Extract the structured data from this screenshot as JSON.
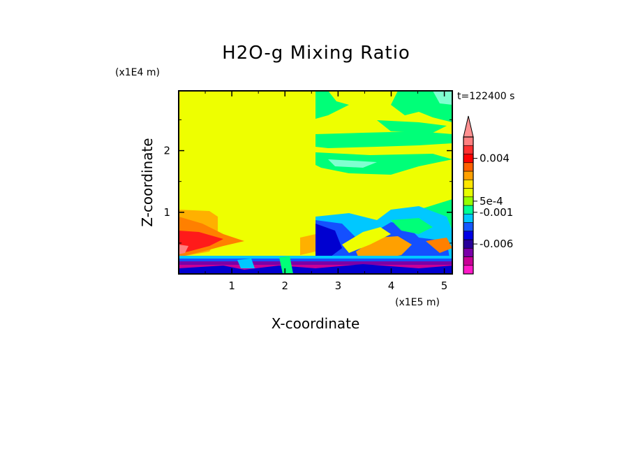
{
  "chart_data": {
    "type": "heatmap",
    "title": "H2O-g Mixing Ratio",
    "xlabel": "X-coordinate",
    "ylabel": "Z-coordinate",
    "x_scale_label": "(x1E5 m)",
    "y_scale_label": "(x1E4 m)",
    "time_label": "t=122400 s",
    "xlim": [
      0.0,
      5.15
    ],
    "ylim": [
      0.0,
      2.97
    ],
    "x_ticks": [
      "1",
      "2",
      "3",
      "4",
      "5"
    ],
    "x_tick_values": [
      1,
      2,
      3,
      4,
      5
    ],
    "y_ticks": [
      "1",
      "2"
    ],
    "y_tick_values": [
      1,
      2
    ],
    "colorbar": {
      "colors": [
        "#ff19c8",
        "#c80096",
        "#7a00a8",
        "#28009a",
        "#0000e6",
        "#1458ff",
        "#00c8ff",
        "#00ff96",
        "#96ff00",
        "#e6ff00",
        "#ffe600",
        "#ffa000",
        "#ff6000",
        "#ff0000",
        "#ff3030",
        "#ff8080"
      ],
      "labels": [
        "0.004",
        "5e-4",
        "-0.001",
        "-0.006"
      ],
      "label_values": [
        0.004,
        0.0005,
        -0.001,
        -0.006
      ],
      "extend": "max"
    },
    "regions": [
      {
        "level": "yellow",
        "color": "#eeff00",
        "x": [
          0.0,
          5.15
        ],
        "z": [
          0.0,
          2.97
        ]
      },
      {
        "level": "yellow-upper-left",
        "color": "#f0ff00",
        "x": [
          0.0,
          2.56
        ],
        "z": [
          0.3,
          2.97
        ]
      },
      {
        "level": "green-bands",
        "color": "#00ff80",
        "x": [
          2.56,
          5.15
        ],
        "z": [
          1.6,
          2.97
        ]
      },
      {
        "level": "orange-left",
        "color": "#ffa000",
        "x": [
          0.0,
          0.9
        ],
        "z": [
          0.3,
          1.0
        ]
      },
      {
        "level": "red-left",
        "color": "#ff0000",
        "x": [
          0.0,
          0.7
        ],
        "z": [
          0.35,
          0.6
        ]
      },
      {
        "level": "blue-low",
        "color": "#0000e6",
        "x": [
          2.56,
          5.15
        ],
        "z": [
          0.0,
          0.9
        ]
      },
      {
        "level": "magenta-floor",
        "color": "#c80096",
        "x": [
          0.0,
          5.15
        ],
        "z": [
          0.0,
          0.25
        ]
      }
    ]
  }
}
